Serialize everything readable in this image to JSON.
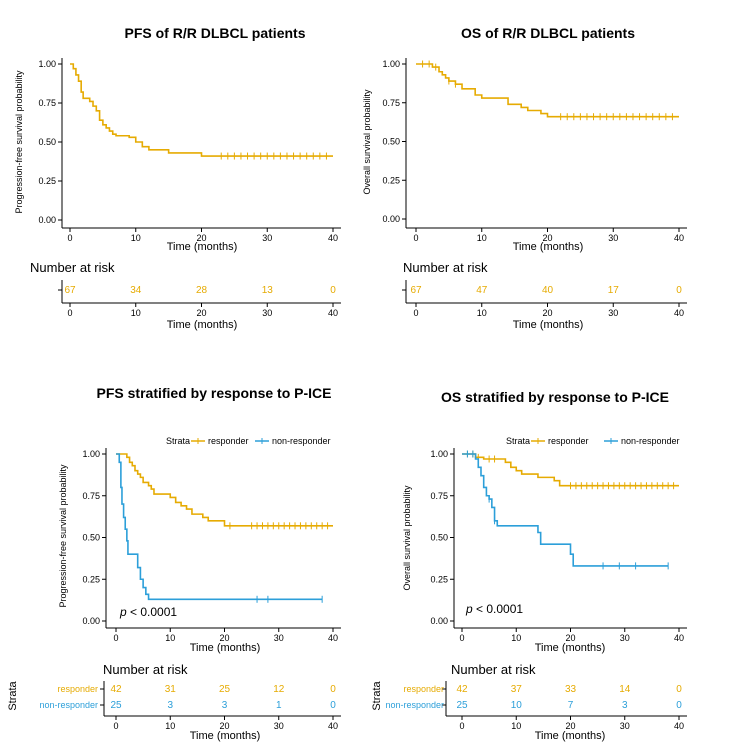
{
  "colors": {
    "responder": "#e6ab02",
    "non_responder": "#2c9fd9",
    "axis": "#000000",
    "risk_title": "#000000"
  },
  "chart_data": [
    {
      "type": "line",
      "title": "PFS of R/R DLBCL patients",
      "xlabel": "Time (months)",
      "ylabel": "Progression-free survival probability",
      "xlim": [
        0,
        40
      ],
      "ylim": [
        0,
        1
      ],
      "xticks": [
        "0",
        "10",
        "20",
        "30",
        "40"
      ],
      "yticks": [
        "0.00",
        "0.25",
        "0.50",
        "0.75",
        "1.00"
      ],
      "series": [
        {
          "name": "all",
          "color_key": "responder",
          "points": [
            [
              0,
              1
            ],
            [
              0.5,
              0.97
            ],
            [
              0.9,
              0.93
            ],
            [
              1.3,
              0.89
            ],
            [
              1.7,
              0.82
            ],
            [
              2,
              0.78
            ],
            [
              3,
              0.76
            ],
            [
              3.5,
              0.73
            ],
            [
              4,
              0.7
            ],
            [
              4.5,
              0.64
            ],
            [
              5,
              0.61
            ],
            [
              5.5,
              0.59
            ],
            [
              6,
              0.57
            ],
            [
              6.5,
              0.55
            ],
            [
              7,
              0.54
            ],
            [
              9,
              0.53
            ],
            [
              10,
              0.5
            ],
            [
              11,
              0.47
            ],
            [
              12,
              0.45
            ],
            [
              15,
              0.43
            ],
            [
              20,
              0.41
            ],
            [
              40,
              0.41
            ]
          ],
          "censor": [
            23,
            24,
            25,
            26,
            27,
            28,
            29,
            30,
            31,
            32,
            33,
            34,
            35,
            36,
            37,
            38,
            39
          ]
        }
      ],
      "risk_table": {
        "title": "Number at risk",
        "xlabel": "Time (months)",
        "show_strata_label": false,
        "rows": [
          {
            "label": "",
            "color_key": "responder",
            "values": [
              "67",
              "34",
              "28",
              "13",
              "0"
            ]
          }
        ]
      }
    },
    {
      "type": "line",
      "title": "OS of R/R DLBCL patients",
      "xlabel": "Time (months)",
      "ylabel": "Overall survival probability",
      "xlim": [
        0,
        40
      ],
      "ylim": [
        0,
        1
      ],
      "xticks": [
        "0",
        "10",
        "20",
        "30",
        "40"
      ],
      "yticks": [
        "0.00",
        "0.25",
        "0.50",
        "0.75",
        "1.00"
      ],
      "series": [
        {
          "name": "all",
          "color_key": "responder",
          "points": [
            [
              0,
              1
            ],
            [
              2.5,
              0.98
            ],
            [
              3.5,
              0.95
            ],
            [
              4,
              0.93
            ],
            [
              4.5,
              0.91
            ],
            [
              5,
              0.89
            ],
            [
              6,
              0.87
            ],
            [
              7,
              0.84
            ],
            [
              9,
              0.8
            ],
            [
              10,
              0.78
            ],
            [
              14,
              0.74
            ],
            [
              16,
              0.72
            ],
            [
              17,
              0.7
            ],
            [
              19,
              0.68
            ],
            [
              20,
              0.66
            ],
            [
              40,
              0.66
            ]
          ],
          "censor": [
            1,
            2,
            3,
            5,
            6,
            22,
            23,
            24,
            25,
            26,
            27,
            28,
            29,
            30,
            31,
            32,
            33,
            34,
            35,
            36,
            37,
            38,
            39
          ]
        }
      ],
      "risk_table": {
        "title": "Number at risk",
        "xlabel": "Time (months)",
        "show_strata_label": false,
        "rows": [
          {
            "label": "",
            "color_key": "responder",
            "values": [
              "67",
              "47",
              "40",
              "17",
              "0"
            ]
          }
        ]
      }
    },
    {
      "type": "line",
      "title": "PFS stratified by response to P-ICE",
      "xlabel": "Time (months)",
      "ylabel": "Progression-free survival probability",
      "xlim": [
        0,
        40
      ],
      "ylim": [
        0,
        1
      ],
      "xticks": [
        "0",
        "10",
        "20",
        "30",
        "40"
      ],
      "yticks": [
        "0.00",
        "0.25",
        "0.50",
        "0.75",
        "1.00"
      ],
      "legend": {
        "title": "Strata",
        "placement": "top"
      },
      "annotation": {
        "p_label": "p",
        "p_value": " < 0.0001"
      },
      "series": [
        {
          "name": "responder",
          "color_key": "responder",
          "points": [
            [
              0,
              1
            ],
            [
              2,
              0.98
            ],
            [
              2.5,
              0.95
            ],
            [
              3,
              0.93
            ],
            [
              3.5,
              0.9
            ],
            [
              4,
              0.88
            ],
            [
              4.5,
              0.86
            ],
            [
              5,
              0.83
            ],
            [
              6,
              0.81
            ],
            [
              6.5,
              0.79
            ],
            [
              7,
              0.76
            ],
            [
              10,
              0.74
            ],
            [
              11,
              0.71
            ],
            [
              12,
              0.69
            ],
            [
              13,
              0.67
            ],
            [
              14,
              0.64
            ],
            [
              16,
              0.62
            ],
            [
              17,
              0.6
            ],
            [
              20,
              0.57
            ],
            [
              40,
              0.57
            ]
          ],
          "censor": [
            21,
            25,
            26,
            27,
            28,
            29,
            30,
            31,
            32,
            33,
            34,
            35,
            36,
            37,
            38,
            39
          ]
        },
        {
          "name": "non-responder",
          "color_key": "non_responder",
          "points": [
            [
              0,
              1
            ],
            [
              0.6,
              0.95
            ],
            [
              0.9,
              0.8
            ],
            [
              1.1,
              0.7
            ],
            [
              1.4,
              0.62
            ],
            [
              1.7,
              0.55
            ],
            [
              2,
              0.48
            ],
            [
              2.2,
              0.4
            ],
            [
              4,
              0.32
            ],
            [
              4.5,
              0.25
            ],
            [
              5,
              0.2
            ],
            [
              5.5,
              0.16
            ],
            [
              6,
              0.13
            ],
            [
              38,
              0.13
            ]
          ],
          "censor": [
            26,
            28,
            38
          ]
        }
      ],
      "risk_table": {
        "title": "Number at risk",
        "xlabel": "Time (months)",
        "strata_label": "Strata",
        "show_strata_label": true,
        "rows": [
          {
            "label": "responder",
            "color_key": "responder",
            "values": [
              "42",
              "31",
              "25",
              "12",
              "0"
            ]
          },
          {
            "label": "non-responder",
            "color_key": "non_responder",
            "values": [
              "25",
              "3",
              "3",
              "1",
              "0"
            ]
          }
        ]
      }
    },
    {
      "type": "line",
      "title": "OS stratified by response to P-ICE",
      "xlabel": "Time (months)",
      "ylabel": "Overall survival probability",
      "xlim": [
        0,
        40
      ],
      "ylim": [
        0,
        1
      ],
      "xticks": [
        "0",
        "10",
        "20",
        "30",
        "40"
      ],
      "yticks": [
        "0.00",
        "0.25",
        "0.50",
        "0.75",
        "1.00"
      ],
      "legend": {
        "title": "Strata",
        "placement": "top"
      },
      "annotation": {
        "p_label": "p",
        "p_value": " < 0.0001"
      },
      "series": [
        {
          "name": "responder",
          "color_key": "responder",
          "points": [
            [
              0,
              1
            ],
            [
              2.5,
              0.98
            ],
            [
              4,
              0.97
            ],
            [
              8,
              0.95
            ],
            [
              9,
              0.92
            ],
            [
              10,
              0.9
            ],
            [
              11,
              0.88
            ],
            [
              14,
              0.86
            ],
            [
              17,
              0.84
            ],
            [
              18,
              0.81
            ],
            [
              20,
              0.81
            ],
            [
              40,
              0.81
            ]
          ],
          "censor": [
            1,
            2,
            3,
            5,
            6,
            20,
            21,
            22,
            23,
            24,
            25,
            26,
            27,
            28,
            29,
            30,
            31,
            32,
            33,
            34,
            35,
            36,
            37,
            38,
            39
          ]
        },
        {
          "name": "non-responder",
          "color_key": "non_responder",
          "points": [
            [
              0,
              1
            ],
            [
              2.5,
              0.97
            ],
            [
              3,
              0.92
            ],
            [
              3.5,
              0.87
            ],
            [
              4,
              0.8
            ],
            [
              4.5,
              0.75
            ],
            [
              5,
              0.73
            ],
            [
              5.5,
              0.68
            ],
            [
              6,
              0.6
            ],
            [
              6.5,
              0.57
            ],
            [
              14,
              0.53
            ],
            [
              14.5,
              0.46
            ],
            [
              20,
              0.4
            ],
            [
              20.5,
              0.33
            ],
            [
              38,
              0.33
            ]
          ],
          "censor": [
            1,
            2,
            5,
            6,
            26,
            29,
            32,
            38
          ]
        }
      ],
      "risk_table": {
        "title": "Number at risk",
        "xlabel": "Time (months)",
        "strata_label": "Strata",
        "show_strata_label": true,
        "rows": [
          {
            "label": "responder",
            "color_key": "responder",
            "values": [
              "42",
              "37",
              "33",
              "14",
              "0"
            ]
          },
          {
            "label": "non-responder",
            "color_key": "non_responder",
            "values": [
              "25",
              "10",
              "7",
              "3",
              "0"
            ]
          }
        ]
      }
    }
  ]
}
